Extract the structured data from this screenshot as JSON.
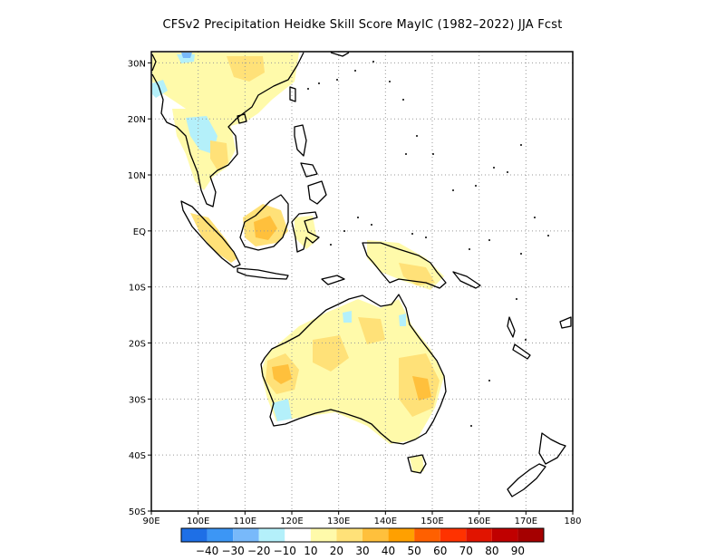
{
  "title": "CFSv2  Precipitation Heidke Skill Score MayIC (1982–2022) JJA Fcst",
  "map": {
    "lon_range": [
      90,
      180
    ],
    "lat_range": [
      -50,
      32
    ],
    "lat_labels": [
      {
        "value": 30,
        "text": "30N"
      },
      {
        "value": 20,
        "text": "20N"
      },
      {
        "value": 10,
        "text": "10N"
      },
      {
        "value": 0,
        "text": "EQ"
      },
      {
        "value": -10,
        "text": "10S"
      },
      {
        "value": -20,
        "text": "20S"
      },
      {
        "value": -30,
        "text": "30S"
      },
      {
        "value": -40,
        "text": "40S"
      },
      {
        "value": -50,
        "text": "50S"
      }
    ],
    "lon_labels": [
      {
        "value": 90,
        "text": "90E"
      },
      {
        "value": 100,
        "text": "100E"
      },
      {
        "value": 110,
        "text": "110E"
      },
      {
        "value": 120,
        "text": "120E"
      },
      {
        "value": 130,
        "text": "130E"
      },
      {
        "value": 140,
        "text": "140E"
      },
      {
        "value": 150,
        "text": "150E"
      },
      {
        "value": 160,
        "text": "160E"
      },
      {
        "value": 170,
        "text": "170E"
      },
      {
        "value": 180,
        "text": "180"
      }
    ],
    "grid": "dotted"
  },
  "colorbar": {
    "colors": [
      "#1e6fe6",
      "#3c96f5",
      "#78b9fa",
      "#b4f0fa",
      "#ffffff",
      "#fffaaa",
      "#ffe178",
      "#ffc03c",
      "#ffa000",
      "#ff6000",
      "#ff3200",
      "#e11400",
      "#c00000",
      "#a50000"
    ],
    "labels": [
      "-40",
      "-30",
      "-20",
      "-10",
      "10",
      "20",
      "30",
      "40",
      "50",
      "60",
      "70",
      "80",
      "90"
    ]
  }
}
